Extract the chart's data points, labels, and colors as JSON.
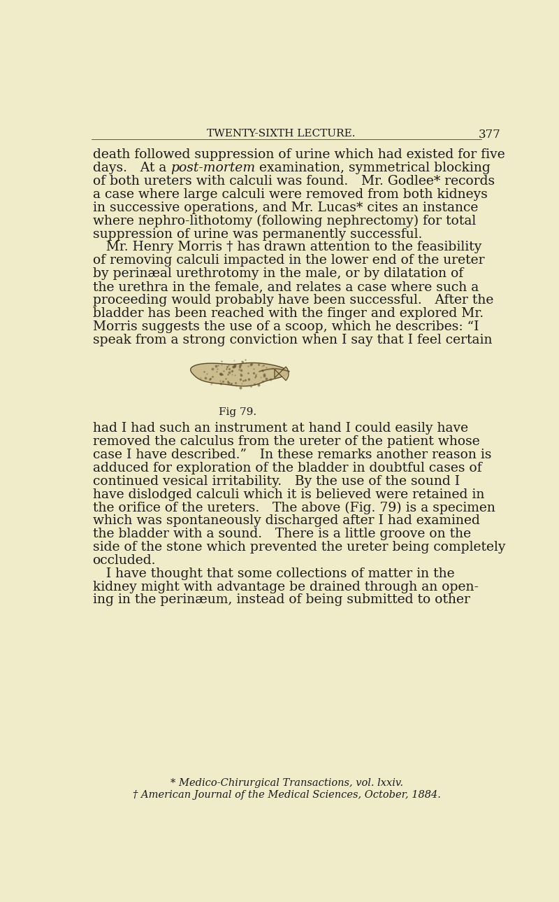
{
  "background_color": "#f0ecca",
  "text_color": "#1a1a1a",
  "header_text": "TWENTY-SIXTH LECTURE.",
  "page_number": "377",
  "header_fontsize": 11,
  "body_fontsize": 13.5,
  "footnote_fontsize": 10.5,
  "body_lines": [
    "death followed suppression of urine which had existed for five",
    "days. At a post-mortem examination, symmetrical blocking",
    "of both ureters with calculi was found. Mr. Godlee* records",
    "a case where large calculi were removed from both kidneys",
    "in successive operations, and Mr. Lucas* cites an instance",
    "where nephro-lithotomy (following nephrectomy) for total",
    "suppression of urine was permanently successful.",
    " Mr. Henry Morris † has drawn attention to the feasibility",
    "of removing calculi impacted in the lower end of the ureter",
    "by perinæal urethrotomy in the male, or by dilatation of",
    "the urethra in the female, and relates a case where such a",
    "proceeding would probably have been successful. After the",
    "bladder has been reached with the finger and explored Mr.",
    "Morris suggests the use of a scoop, which he describes: “I",
    "speak from a strong conviction when I say that I feel certain"
  ],
  "body_lines2": [
    "had I had such an instrument at hand I could easily have",
    "removed the calculus from the ureter of the patient whose",
    "case I have described.” In these remarks another reason is",
    "adduced for exploration of the bladder in doubtful cases of",
    "continued vesical irritability. By the use of the sound I",
    "have dislodged calculi which it is believed were retained in",
    "the orifice of the ureters. The above (Fig. 79) is a specimen",
    "which was spontaneously discharged after I had examined",
    "the bladder with a sound. There is a little groove on the",
    "side of the stone which prevented the ureter being completely",
    "occluded.",
    " I have thought that some collections of matter in the",
    "kidney might with advantage be drained through an open-",
    "ing in the perinæum, instead of being submitted to other"
  ],
  "fig_caption": "Fig 79.",
  "footnote1": "* Medico-Chirurgical Transactions, vol. lxxiv.",
  "footnote2": "† American Journal of the Medical Sciences, October, 1884.",
  "italic_line_index": 1,
  "italic_before": "days. At a ",
  "italic_word": "post-mortem",
  "italic_after": " examination, symmetrical blocking"
}
